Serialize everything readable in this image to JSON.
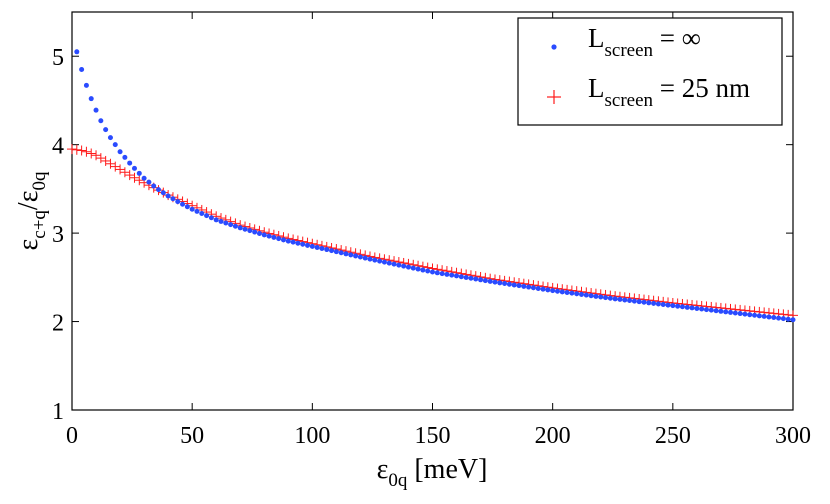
{
  "chart_data": {
    "type": "scatter",
    "title": "",
    "xlabel": {
      "main": "ε",
      "sub": "0q",
      "suffix": " [meV]"
    },
    "ylabel": {
      "main": "ε",
      "sub": "c+q",
      "mid": "/ε",
      "sub2": "0q"
    },
    "xlim": [
      0,
      300
    ],
    "ylim": [
      1,
      5.5
    ],
    "x_ticks": [
      0,
      50,
      100,
      150,
      200,
      250,
      300
    ],
    "y_ticks": [
      1,
      2,
      3,
      4,
      5
    ],
    "x_tick_labels": [
      "0",
      "50",
      "100",
      "150",
      "200",
      "250",
      "300"
    ],
    "y_tick_labels": [
      "1",
      "2",
      "3",
      "4",
      "5"
    ],
    "grid": false,
    "legend_position": "top-right",
    "series": [
      {
        "name": "L_screen = ∞",
        "label_main": "L",
        "label_sub": "screen",
        "label_rest": " = ∞",
        "marker": "dot",
        "color": "#2a4bff",
        "x": [
          2,
          4,
          6,
          8,
          10,
          12,
          14,
          16,
          18,
          20,
          25,
          30,
          35,
          40,
          45,
          50,
          60,
          70,
          80,
          90,
          100,
          125,
          150,
          175,
          200,
          225,
          250,
          275,
          300
        ],
        "y": [
          5.05,
          4.85,
          4.67,
          4.52,
          4.39,
          4.27,
          4.17,
          4.08,
          4.0,
          3.92,
          3.76,
          3.62,
          3.51,
          3.42,
          3.34,
          3.27,
          3.15,
          3.06,
          2.98,
          2.91,
          2.85,
          2.7,
          2.56,
          2.45,
          2.35,
          2.26,
          2.18,
          2.1,
          2.02
        ]
      },
      {
        "name": "L_screen = 25 nm",
        "label_main": "L",
        "label_sub": "screen",
        "label_rest": " = 25 nm",
        "marker": "plus",
        "color": "#ff1a1a",
        "x": [
          0,
          5,
          10,
          15,
          20,
          25,
          30,
          35,
          40,
          45,
          50,
          60,
          70,
          80,
          90,
          100,
          125,
          150,
          175,
          200,
          225,
          250,
          275,
          300
        ],
        "y": [
          3.95,
          3.93,
          3.88,
          3.8,
          3.72,
          3.64,
          3.57,
          3.5,
          3.43,
          3.37,
          3.31,
          3.19,
          3.09,
          3.01,
          2.94,
          2.88,
          2.73,
          2.6,
          2.48,
          2.38,
          2.29,
          2.21,
          2.14,
          2.07
        ]
      }
    ]
  }
}
